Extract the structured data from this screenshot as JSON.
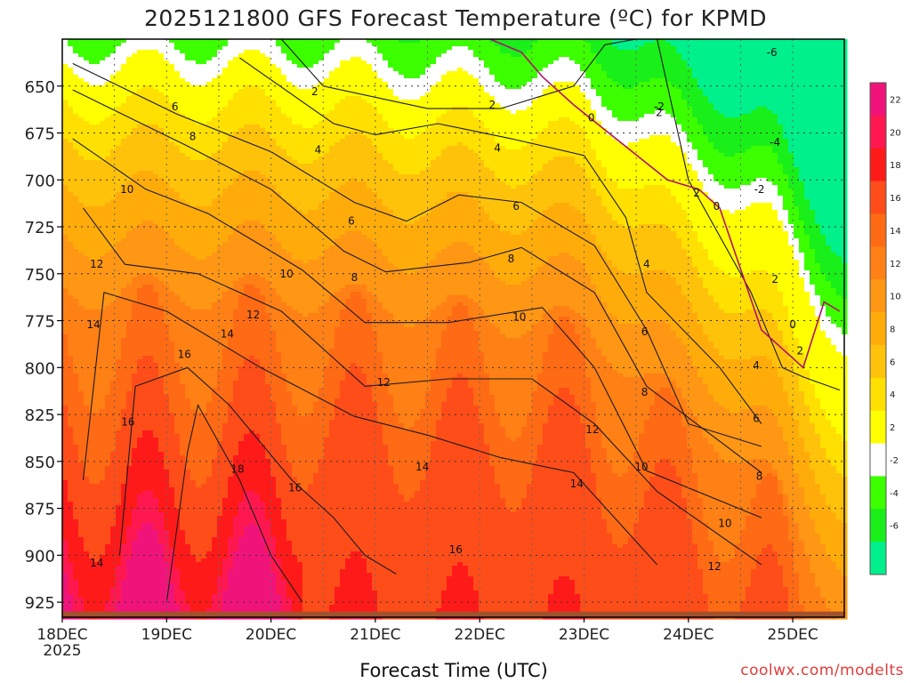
{
  "chart_data": {
    "type": "heatmap",
    "title": "2025121800 GFS Forecast Temperature (ºC) for KPMD",
    "xlabel": "Forecast Time (UTC)",
    "ylabel": "",
    "credit": "coolwx.com/modelts",
    "x_ticks": [
      "18DEC",
      "19DEC",
      "20DEC",
      "21DEC",
      "22DEC",
      "23DEC",
      "24DEC",
      "25DEC"
    ],
    "x_tick_sub": "2025",
    "y_ticks": [
      650,
      675,
      700,
      725,
      750,
      775,
      800,
      825,
      850,
      875,
      900,
      925
    ],
    "y_range": [
      625,
      933
    ],
    "x_range_days": [
      0,
      7.45
    ],
    "legend": {
      "labels": [
        "22",
        "20",
        "18",
        "16",
        "14",
        "12",
        "10",
        "8",
        "6",
        "4",
        "2",
        "-2",
        "-4",
        "-6"
      ],
      "bins": [
        {
          "lo": 22,
          "hi": 24,
          "color": "#f0147a"
        },
        {
          "lo": 20,
          "hi": 22,
          "color": "#ff1850"
        },
        {
          "lo": 18,
          "hi": 20,
          "color": "#ff1a1a"
        },
        {
          "lo": 16,
          "hi": 18,
          "color": "#ff4d1a"
        },
        {
          "lo": 14,
          "hi": 16,
          "color": "#ff6a14"
        },
        {
          "lo": 12,
          "hi": 14,
          "color": "#ff8014"
        },
        {
          "lo": 10,
          "hi": 12,
          "color": "#ff9614"
        },
        {
          "lo": 8,
          "hi": 10,
          "color": "#ffac0a"
        },
        {
          "lo": 6,
          "hi": 8,
          "color": "#ffc20a"
        },
        {
          "lo": 4,
          "hi": 6,
          "color": "#ffe000"
        },
        {
          "lo": 2,
          "hi": 4,
          "color": "#ffff00"
        },
        {
          "lo": -2,
          "hi": 2,
          "color": "#ffffff"
        },
        {
          "lo": -4,
          "hi": -2,
          "color": "#3cff00"
        },
        {
          "lo": -6,
          "hi": -4,
          "color": "#19ef19"
        },
        {
          "lo": -8,
          "hi": -6,
          "color": "#00f08c"
        }
      ]
    },
    "terrain_color": "#a0522d",
    "surface_pressure": 930,
    "isotherms": [
      {
        "value": 2,
        "pressure": [
          625,
          650,
          662,
          662,
          650,
          628,
          625,
          625,
          700,
          760,
          800,
          805,
          812
        ],
        "day": [
          0,
          0,
          0,
          0,
          0,
          0,
          0,
          0,
          0,
          0,
          0,
          0,
          0
        ],
        "x_days": [
          2.1,
          2.5,
          3.5,
          4.2,
          4.9,
          5.2,
          5.5,
          5.7,
          6.0,
          6.6,
          6.9,
          7.1,
          7.45
        ]
      },
      {
        "value": 4,
        "pressure": [
          635,
          670,
          676,
          670,
          678,
          687,
          720,
          760,
          800,
          830
        ],
        "x_days": [
          1.7,
          2.6,
          3.0,
          3.6,
          4.3,
          5.0,
          5.4,
          5.6,
          6.3,
          6.7
        ]
      },
      {
        "value": 6,
        "pressure": [
          638,
          665,
          685,
          712,
          722,
          708,
          712,
          735,
          780,
          830,
          842
        ],
        "x_days": [
          0.1,
          1.1,
          2.0,
          2.8,
          3.3,
          3.8,
          4.4,
          5.1,
          5.6,
          6.0,
          6.7
        ]
      },
      {
        "value": 8,
        "pressure": [
          652,
          682,
          705,
          738,
          749,
          744,
          736,
          760,
          810,
          856
        ],
        "x_days": [
          0.1,
          1.2,
          2.0,
          2.7,
          3.1,
          3.9,
          4.4,
          5.1,
          5.6,
          6.7
        ]
      },
      {
        "value": 10,
        "pressure": [
          678,
          705,
          718,
          748,
          776,
          776,
          768,
          800,
          855,
          880
        ],
        "x_days": [
          0.1,
          0.8,
          1.4,
          2.3,
          2.9,
          3.7,
          4.6,
          5.1,
          5.6,
          6.7
        ]
      },
      {
        "value": 12,
        "pressure": [
          715,
          745,
          750,
          770,
          810,
          806,
          806,
          830,
          866,
          905
        ],
        "x_days": [
          0.2,
          0.6,
          1.3,
          2.1,
          2.9,
          3.7,
          4.5,
          5.1,
          5.7,
          6.7
        ]
      },
      {
        "value": 14,
        "pressure": [
          860,
          760,
          770,
          800,
          826,
          836,
          848,
          856,
          905
        ],
        "x_days": [
          0.2,
          0.4,
          1.0,
          1.9,
          2.8,
          3.5,
          4.2,
          4.9,
          5.7
        ]
      },
      {
        "value": 16,
        "pressure": [
          900,
          810,
          800,
          820,
          860,
          880,
          900,
          910
        ],
        "x_days": [
          0.55,
          0.7,
          1.2,
          1.6,
          2.2,
          2.6,
          2.9,
          3.2
        ]
      },
      {
        "value": 18,
        "pressure": [
          925,
          845,
          820,
          860,
          900,
          925
        ],
        "x_days": [
          1.0,
          1.2,
          1.3,
          1.7,
          2.0,
          2.3
        ]
      },
      {
        "value": 0,
        "pressure": [
          625,
          632,
          645,
          660,
          700,
          705,
          715,
          780,
          790,
          800,
          765,
          770
        ],
        "x_days": [
          4.1,
          4.4,
          4.6,
          4.9,
          5.8,
          6.1,
          6.3,
          6.7,
          6.9,
          7.1,
          7.3,
          7.45
        ]
      }
    ],
    "contour_labels": [
      {
        "value": "2",
        "x_days": 2.42,
        "pressure": 653
      },
      {
        "value": "2",
        "x_days": 4.12,
        "pressure": 660
      },
      {
        "value": "2",
        "x_days": 5.72,
        "pressure": 664
      },
      {
        "value": "2",
        "x_days": 6.08,
        "pressure": 707
      },
      {
        "value": "2",
        "x_days": 6.83,
        "pressure": 753
      },
      {
        "value": "2",
        "x_days": 7.07,
        "pressure": 791
      },
      {
        "value": "0",
        "x_days": 5.07,
        "pressure": 667
      },
      {
        "value": "0",
        "x_days": 6.27,
        "pressure": 714
      },
      {
        "value": "0",
        "x_days": 7.0,
        "pressure": 777
      },
      {
        "value": "4",
        "x_days": 2.45,
        "pressure": 684
      },
      {
        "value": "4",
        "x_days": 4.17,
        "pressure": 683
      },
      {
        "value": "4",
        "x_days": 5.6,
        "pressure": 745
      },
      {
        "value": "4",
        "x_days": 6.65,
        "pressure": 799
      },
      {
        "value": "6",
        "x_days": 1.08,
        "pressure": 661
      },
      {
        "value": "6",
        "x_days": 2.77,
        "pressure": 722
      },
      {
        "value": "6",
        "x_days": 4.35,
        "pressure": 714
      },
      {
        "value": "6",
        "x_days": 5.58,
        "pressure": 781
      },
      {
        "value": "6",
        "x_days": 6.65,
        "pressure": 827
      },
      {
        "value": "8",
        "x_days": 1.25,
        "pressure": 677
      },
      {
        "value": "8",
        "x_days": 2.8,
        "pressure": 752
      },
      {
        "value": "8",
        "x_days": 4.3,
        "pressure": 742
      },
      {
        "value": "8",
        "x_days": 5.58,
        "pressure": 813
      },
      {
        "value": "8",
        "x_days": 6.68,
        "pressure": 858
      },
      {
        "value": "10",
        "x_days": 0.62,
        "pressure": 705
      },
      {
        "value": "10",
        "x_days": 2.15,
        "pressure": 750
      },
      {
        "value": "10",
        "x_days": 4.38,
        "pressure": 773
      },
      {
        "value": "10",
        "x_days": 5.55,
        "pressure": 853
      },
      {
        "value": "10",
        "x_days": 6.35,
        "pressure": 883
      },
      {
        "value": "12",
        "x_days": 0.33,
        "pressure": 745
      },
      {
        "value": "12",
        "x_days": 1.83,
        "pressure": 772
      },
      {
        "value": "12",
        "x_days": 3.08,
        "pressure": 808
      },
      {
        "value": "12",
        "x_days": 5.08,
        "pressure": 833
      },
      {
        "value": "12",
        "x_days": 6.25,
        "pressure": 906
      },
      {
        "value": "14",
        "x_days": 0.3,
        "pressure": 777
      },
      {
        "value": "14",
        "x_days": 1.58,
        "pressure": 782
      },
      {
        "value": "14",
        "x_days": 3.45,
        "pressure": 853
      },
      {
        "value": "14",
        "x_days": 4.93,
        "pressure": 862
      },
      {
        "value": "14",
        "x_days": 0.33,
        "pressure": 904
      },
      {
        "value": "16",
        "x_days": 1.17,
        "pressure": 793
      },
      {
        "value": "16",
        "x_days": 0.63,
        "pressure": 829
      },
      {
        "value": "16",
        "x_days": 2.23,
        "pressure": 864
      },
      {
        "value": "16",
        "x_days": 3.77,
        "pressure": 897
      },
      {
        "value": "18",
        "x_days": 1.68,
        "pressure": 854
      },
      {
        "value": "-2",
        "x_days": 5.72,
        "pressure": 661
      },
      {
        "value": "-2",
        "x_days": 6.68,
        "pressure": 705
      },
      {
        "value": "-4",
        "x_days": 6.83,
        "pressure": 680
      },
      {
        "value": "-6",
        "x_days": 6.8,
        "pressure": 632
      }
    ]
  }
}
